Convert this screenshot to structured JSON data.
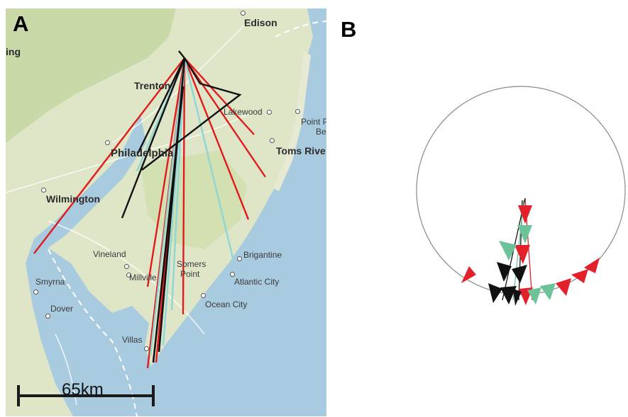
{
  "panels": {
    "a_label": "A",
    "b_label": "B"
  },
  "places": {
    "edison": "Edison",
    "trenton": "Trenton",
    "lakewood": "Lakewood",
    "point_pleasant_1": "Point P",
    "point_pleasant_2": "Be",
    "toms_river": "Toms Rive",
    "philadelphia": "Philadelphia",
    "wilmington": "Wilmington",
    "vineland": "Vineland",
    "millville": "Millville",
    "somers_point_1": "Somers",
    "somers_point_2": "Point",
    "brigantine": "Brigantine",
    "atlantic_city": "Atlantic City",
    "ocean_city": "Ocean City",
    "smyrna": "Smyrna",
    "dover": "Dover",
    "villas": "Villas",
    "edge_fragment": "ing"
  },
  "scale_bar": {
    "label": "65km"
  },
  "colors": {
    "track_red": "#e01b1b",
    "track_black": "#111111",
    "track_cyan": "#8fd6d6",
    "marker_red": "#e3212a",
    "marker_green": "#6cc39a",
    "marker_black": "#111111",
    "land": "#dfe6c8",
    "water": "#a9cbe0"
  }
}
